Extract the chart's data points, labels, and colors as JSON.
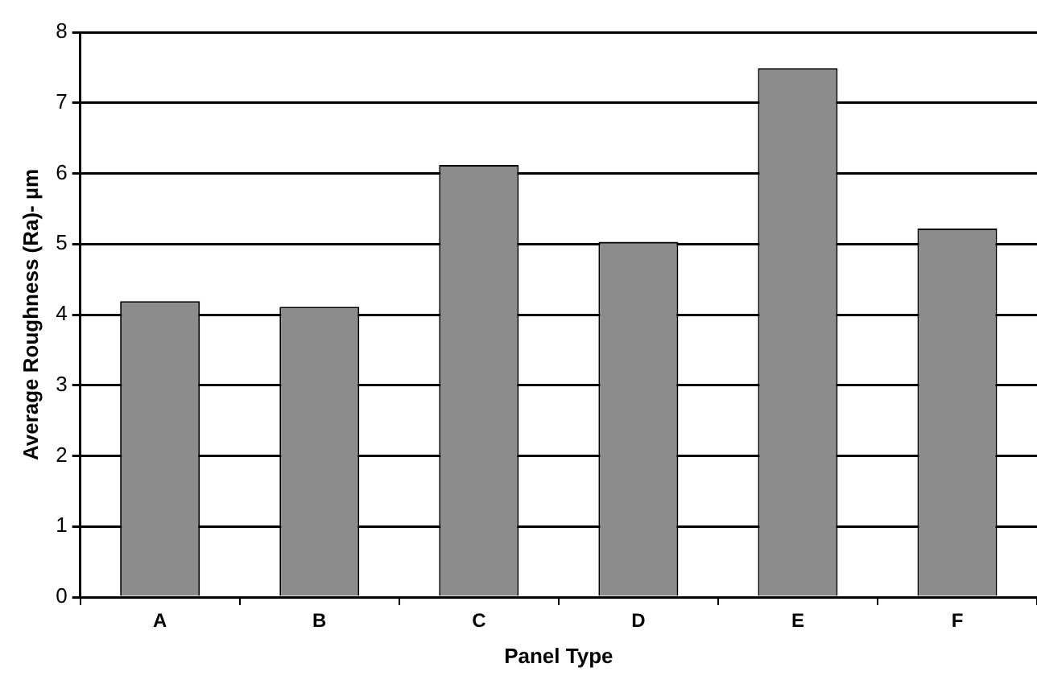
{
  "chart_data": {
    "type": "bar",
    "xlabel": "Panel Type",
    "ylabel": "Average Roughness (Ra)- µm",
    "categories": [
      "A",
      "B",
      "C",
      "D",
      "E",
      "F"
    ],
    "values": [
      4.19,
      4.11,
      6.12,
      5.03,
      7.49,
      5.22
    ],
    "color": "#8c8c8c",
    "ylim": [
      0,
      8
    ],
    "yticks": [
      0,
      1,
      2,
      3,
      4,
      5,
      6,
      7,
      8
    ],
    "grid": "y"
  }
}
